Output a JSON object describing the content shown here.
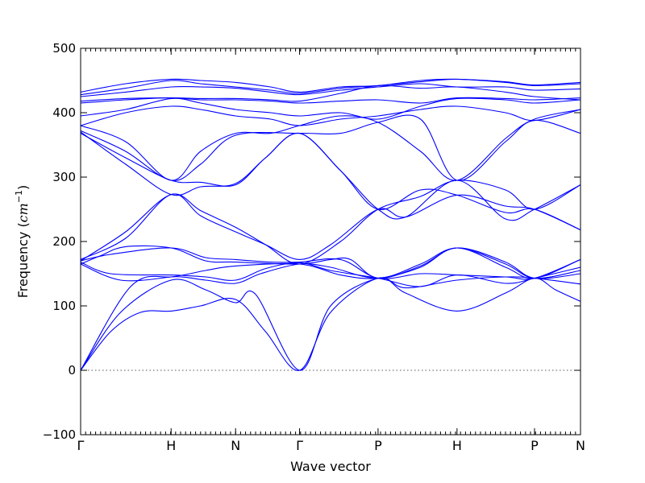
{
  "chart_data": {
    "type": "line",
    "xlabel": "Wave vector",
    "ylabel_prefix": "Frequency (",
    "ylabel_unit": "cm",
    "ylabel_exp": "−1",
    "ylabel_suffix": ")",
    "ylim": [
      -100,
      500
    ],
    "yticks": [
      -100,
      0,
      100,
      200,
      300,
      400,
      500
    ],
    "xlim": [
      0,
      1
    ],
    "xticks": [
      {
        "label": "Γ",
        "x": 0.0
      },
      {
        "label": "H",
        "x": 0.181
      },
      {
        "label": "N",
        "x": 0.31
      },
      {
        "label": "Γ",
        "x": 0.438
      },
      {
        "label": "P",
        "x": 0.595
      },
      {
        "label": "H",
        "x": 0.753
      },
      {
        "label": "P",
        "x": 0.908
      },
      {
        "label": "N",
        "x": 1.0
      }
    ],
    "zero_line": true,
    "series": [
      {
        "values": [
          [
            0,
            0
          ],
          [
            0.06,
            60
          ],
          [
            0.12,
            90
          ],
          [
            0.181,
            92
          ],
          [
            0.24,
            100
          ],
          [
            0.31,
            110
          ],
          [
            0.37,
            60
          ],
          [
            0.438,
            0
          ],
          [
            0.5,
            90
          ],
          [
            0.595,
            143
          ],
          [
            0.65,
            120
          ],
          [
            0.753,
            92
          ],
          [
            0.85,
            120
          ],
          [
            0.908,
            143
          ],
          [
            0.95,
            125
          ],
          [
            1.0,
            107
          ]
        ]
      },
      {
        "values": [
          [
            0,
            0
          ],
          [
            0.08,
            90
          ],
          [
            0.181,
            140
          ],
          [
            0.25,
            125
          ],
          [
            0.31,
            105
          ],
          [
            0.35,
            118
          ],
          [
            0.438,
            0
          ],
          [
            0.5,
            100
          ],
          [
            0.595,
            143
          ],
          [
            0.65,
            128
          ],
          [
            0.753,
            140
          ],
          [
            0.85,
            145
          ],
          [
            0.908,
            143
          ],
          [
            1.0,
            134
          ]
        ]
      },
      {
        "values": [
          [
            0,
            0
          ],
          [
            0.1,
            130
          ],
          [
            0.181,
            145
          ],
          [
            0.25,
            140
          ],
          [
            0.31,
            135
          ],
          [
            0.36,
            150
          ],
          [
            0.438,
            165
          ],
          [
            0.5,
            160
          ],
          [
            0.595,
            143
          ],
          [
            0.68,
            165
          ],
          [
            0.753,
            190
          ],
          [
            0.85,
            165
          ],
          [
            0.908,
            143
          ],
          [
            1.0,
            155
          ]
        ]
      },
      {
        "values": [
          [
            0,
            165
          ],
          [
            0.08,
            140
          ],
          [
            0.181,
            145
          ],
          [
            0.25,
            155
          ],
          [
            0.31,
            162
          ],
          [
            0.438,
            165
          ],
          [
            0.52,
            148
          ],
          [
            0.595,
            143
          ],
          [
            0.68,
            160
          ],
          [
            0.753,
            190
          ],
          [
            0.85,
            160
          ],
          [
            0.908,
            143
          ],
          [
            1.0,
            172
          ]
        ]
      },
      {
        "values": [
          [
            0,
            168
          ],
          [
            0.06,
            150
          ],
          [
            0.181,
            148
          ],
          [
            0.25,
            145
          ],
          [
            0.31,
            140
          ],
          [
            0.37,
            158
          ],
          [
            0.438,
            167
          ],
          [
            0.5,
            155
          ],
          [
            0.595,
            143
          ],
          [
            0.68,
            130
          ],
          [
            0.753,
            148
          ],
          [
            0.85,
            135
          ],
          [
            0.908,
            143
          ],
          [
            1.0,
            160
          ]
        ]
      },
      {
        "values": [
          [
            0,
            170
          ],
          [
            0.06,
            180
          ],
          [
            0.181,
            190
          ],
          [
            0.25,
            175
          ],
          [
            0.31,
            172
          ],
          [
            0.38,
            168
          ],
          [
            0.438,
            168
          ],
          [
            0.52,
            172
          ],
          [
            0.595,
            143
          ],
          [
            0.68,
            150
          ],
          [
            0.753,
            148
          ],
          [
            0.85,
            145
          ],
          [
            0.908,
            143
          ],
          [
            1.0,
            172
          ]
        ]
      },
      {
        "values": [
          [
            0,
            165
          ],
          [
            0.04,
            178
          ],
          [
            0.09,
            192
          ],
          [
            0.181,
            190
          ],
          [
            0.25,
            170
          ],
          [
            0.31,
            168
          ],
          [
            0.438,
            165
          ],
          [
            0.5,
            172
          ],
          [
            0.54,
            172
          ],
          [
            0.595,
            143
          ],
          [
            0.68,
            162
          ],
          [
            0.753,
            190
          ],
          [
            0.85,
            168
          ],
          [
            0.908,
            143
          ],
          [
            1.0,
            150
          ]
        ]
      },
      {
        "values": [
          [
            0,
            172
          ],
          [
            0.09,
            205
          ],
          [
            0.181,
            273
          ],
          [
            0.24,
            240
          ],
          [
            0.31,
            215
          ],
          [
            0.37,
            195
          ],
          [
            0.438,
            172
          ],
          [
            0.5,
            195
          ],
          [
            0.595,
            250
          ],
          [
            0.65,
            238
          ],
          [
            0.753,
            272
          ],
          [
            0.85,
            255
          ],
          [
            0.908,
            250
          ],
          [
            1.0,
            218
          ]
        ]
      },
      {
        "values": [
          [
            0,
            170
          ],
          [
            0.09,
            215
          ],
          [
            0.181,
            273
          ],
          [
            0.24,
            248
          ],
          [
            0.31,
            222
          ],
          [
            0.37,
            195
          ],
          [
            0.438,
            165
          ],
          [
            0.52,
            200
          ],
          [
            0.595,
            250
          ],
          [
            0.68,
            270
          ],
          [
            0.753,
            295
          ],
          [
            0.85,
            280
          ],
          [
            0.908,
            250
          ],
          [
            1.0,
            288
          ]
        ]
      },
      {
        "values": [
          [
            0,
            368
          ],
          [
            0.09,
            330
          ],
          [
            0.181,
            295
          ],
          [
            0.24,
            292
          ],
          [
            0.31,
            288
          ],
          [
            0.37,
            330
          ],
          [
            0.438,
            368
          ],
          [
            0.52,
            310
          ],
          [
            0.595,
            250
          ],
          [
            0.65,
            238
          ],
          [
            0.753,
            295
          ],
          [
            0.85,
            235
          ],
          [
            0.908,
            250
          ],
          [
            1.0,
            288
          ]
        ]
      },
      {
        "values": [
          [
            0,
            370
          ],
          [
            0.09,
            320
          ],
          [
            0.181,
            273
          ],
          [
            0.24,
            285
          ],
          [
            0.31,
            290
          ],
          [
            0.37,
            330
          ],
          [
            0.438,
            368
          ],
          [
            0.52,
            310
          ],
          [
            0.595,
            250
          ],
          [
            0.68,
            280
          ],
          [
            0.753,
            272
          ],
          [
            0.85,
            245
          ],
          [
            0.908,
            250
          ],
          [
            1.0,
            218
          ]
        ]
      },
      {
        "values": [
          [
            0,
            372
          ],
          [
            0.09,
            340
          ],
          [
            0.181,
            295
          ],
          [
            0.24,
            320
          ],
          [
            0.31,
            365
          ],
          [
            0.438,
            368
          ],
          [
            0.52,
            368
          ],
          [
            0.595,
            385
          ],
          [
            0.68,
            390
          ],
          [
            0.753,
            295
          ],
          [
            0.85,
            355
          ],
          [
            0.908,
            388
          ],
          [
            1.0,
            368
          ]
        ]
      },
      {
        "values": [
          [
            0,
            380
          ],
          [
            0.09,
            355
          ],
          [
            0.181,
            295
          ],
          [
            0.24,
            340
          ],
          [
            0.31,
            368
          ],
          [
            0.38,
            368
          ],
          [
            0.438,
            380
          ],
          [
            0.52,
            395
          ],
          [
            0.595,
            385
          ],
          [
            0.68,
            340
          ],
          [
            0.753,
            295
          ],
          [
            0.85,
            360
          ],
          [
            0.908,
            390
          ],
          [
            1.0,
            405
          ]
        ]
      },
      {
        "values": [
          [
            0,
            380
          ],
          [
            0.09,
            400
          ],
          [
            0.181,
            410
          ],
          [
            0.24,
            405
          ],
          [
            0.31,
            395
          ],
          [
            0.38,
            390
          ],
          [
            0.438,
            380
          ],
          [
            0.52,
            390
          ],
          [
            0.595,
            395
          ],
          [
            0.68,
            405
          ],
          [
            0.753,
            410
          ],
          [
            0.85,
            400
          ],
          [
            0.908,
            388
          ],
          [
            1.0,
            405
          ]
        ]
      },
      {
        "values": [
          [
            0,
            395
          ],
          [
            0.09,
            405
          ],
          [
            0.181,
            422
          ],
          [
            0.24,
            415
          ],
          [
            0.31,
            405
          ],
          [
            0.38,
            400
          ],
          [
            0.438,
            395
          ],
          [
            0.52,
            400
          ],
          [
            0.595,
            390
          ],
          [
            0.68,
            410
          ],
          [
            0.753,
            422
          ],
          [
            0.85,
            420
          ],
          [
            0.908,
            415
          ],
          [
            1.0,
            420
          ]
        ]
      },
      {
        "values": [
          [
            0,
            415
          ],
          [
            0.09,
            420
          ],
          [
            0.181,
            423
          ],
          [
            0.24,
            420
          ],
          [
            0.31,
            420
          ],
          [
            0.38,
            418
          ],
          [
            0.438,
            415
          ],
          [
            0.52,
            418
          ],
          [
            0.595,
            420
          ],
          [
            0.68,
            415
          ],
          [
            0.753,
            423
          ],
          [
            0.85,
            422
          ],
          [
            0.908,
            420
          ],
          [
            1.0,
            423
          ]
        ]
      },
      {
        "values": [
          [
            0,
            418
          ],
          [
            0.09,
            422
          ],
          [
            0.181,
            423
          ],
          [
            0.24,
            422
          ],
          [
            0.31,
            422
          ],
          [
            0.38,
            420
          ],
          [
            0.438,
            418
          ],
          [
            0.52,
            430
          ],
          [
            0.595,
            442
          ],
          [
            0.68,
            438
          ],
          [
            0.753,
            440
          ],
          [
            0.85,
            432
          ],
          [
            0.908,
            425
          ],
          [
            1.0,
            420
          ]
        ]
      },
      {
        "values": [
          [
            0,
            425
          ],
          [
            0.09,
            432
          ],
          [
            0.181,
            440
          ],
          [
            0.24,
            440
          ],
          [
            0.31,
            438
          ],
          [
            0.38,
            432
          ],
          [
            0.438,
            428
          ],
          [
            0.52,
            435
          ],
          [
            0.595,
            440
          ],
          [
            0.68,
            445
          ],
          [
            0.753,
            440
          ],
          [
            0.85,
            440
          ],
          [
            0.908,
            435
          ],
          [
            1.0,
            437
          ]
        ]
      },
      {
        "values": [
          [
            0,
            428
          ],
          [
            0.09,
            438
          ],
          [
            0.181,
            450
          ],
          [
            0.24,
            445
          ],
          [
            0.31,
            440
          ],
          [
            0.38,
            435
          ],
          [
            0.438,
            430
          ],
          [
            0.52,
            438
          ],
          [
            0.595,
            442
          ],
          [
            0.68,
            448
          ],
          [
            0.753,
            452
          ],
          [
            0.85,
            447
          ],
          [
            0.908,
            442
          ],
          [
            1.0,
            445
          ]
        ]
      },
      {
        "values": [
          [
            0,
            432
          ],
          [
            0.09,
            445
          ],
          [
            0.181,
            452
          ],
          [
            0.24,
            450
          ],
          [
            0.31,
            447
          ],
          [
            0.38,
            440
          ],
          [
            0.438,
            432
          ],
          [
            0.52,
            440
          ],
          [
            0.595,
            442
          ],
          [
            0.68,
            450
          ],
          [
            0.753,
            452
          ],
          [
            0.85,
            448
          ],
          [
            0.908,
            443
          ],
          [
            1.0,
            447
          ]
        ]
      }
    ]
  }
}
